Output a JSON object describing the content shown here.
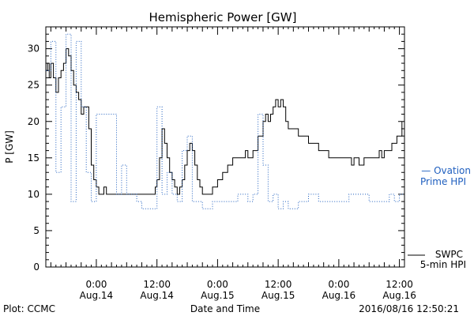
{
  "chart_data": {
    "type": "line",
    "title": "Hemispheric Power [GW]",
    "ylabel": "P [GW]",
    "xlabel": "Date and Time",
    "ylim": [
      0,
      33
    ],
    "yticks": [
      0,
      5,
      10,
      15,
      20,
      25,
      30
    ],
    "xlim": [
      "2016-08-13 14:00",
      "2016-08-16 13:00"
    ],
    "xticks": [
      {
        "time": "2016-08-14 00:00",
        "label1": "0:00",
        "label2": "Aug.14"
      },
      {
        "time": "2016-08-14 12:00",
        "label1": "12:00",
        "label2": "Aug.14"
      },
      {
        "time": "2016-08-15 00:00",
        "label1": "0:00",
        "label2": "Aug.15"
      },
      {
        "time": "2016-08-15 12:00",
        "label1": "12:00",
        "label2": "Aug.15"
      },
      {
        "time": "2016-08-16 00:00",
        "label1": "0:00",
        "label2": "Aug.16"
      },
      {
        "time": "2016-08-16 12:00",
        "label1": "12:00",
        "label2": "Aug.16"
      }
    ],
    "series": [
      {
        "name": "SWPC 5-min HPI",
        "legend_line1": "SWPC",
        "legend_line2": "5-min HPI",
        "color": "#000000",
        "style": "solid",
        "points": [
          [
            "2016-08-13 14:00",
            27
          ],
          [
            "2016-08-13 14:20",
            28
          ],
          [
            "2016-08-13 14:40",
            26
          ],
          [
            "2016-08-13 15:00",
            28
          ],
          [
            "2016-08-13 15:30",
            26
          ],
          [
            "2016-08-13 16:00",
            24
          ],
          [
            "2016-08-13 16:30",
            26
          ],
          [
            "2016-08-13 17:00",
            27
          ],
          [
            "2016-08-13 17:30",
            28
          ],
          [
            "2016-08-13 18:00",
            30
          ],
          [
            "2016-08-13 18:30",
            29
          ],
          [
            "2016-08-13 19:00",
            27
          ],
          [
            "2016-08-13 19:30",
            25
          ],
          [
            "2016-08-13 20:00",
            24
          ],
          [
            "2016-08-13 20:30",
            23
          ],
          [
            "2016-08-13 21:00",
            21
          ],
          [
            "2016-08-13 21:30",
            22
          ],
          [
            "2016-08-13 22:00",
            22
          ],
          [
            "2016-08-13 22:30",
            19
          ],
          [
            "2016-08-13 23:00",
            14
          ],
          [
            "2016-08-13 23:30",
            12
          ],
          [
            "2016-08-14 00:00",
            11
          ],
          [
            "2016-08-14 00:30",
            10
          ],
          [
            "2016-08-14 01:00",
            10
          ],
          [
            "2016-08-14 01:30",
            11
          ],
          [
            "2016-08-14 02:00",
            10
          ],
          [
            "2016-08-14 03:00",
            10
          ],
          [
            "2016-08-14 04:00",
            10
          ],
          [
            "2016-08-14 05:00",
            10
          ],
          [
            "2016-08-14 06:00",
            10
          ],
          [
            "2016-08-14 07:00",
            10
          ],
          [
            "2016-08-14 08:00",
            10
          ],
          [
            "2016-08-14 09:00",
            10
          ],
          [
            "2016-08-14 10:00",
            10
          ],
          [
            "2016-08-14 11:00",
            10
          ],
          [
            "2016-08-14 11:40",
            11
          ],
          [
            "2016-08-14 12:00",
            12
          ],
          [
            "2016-08-14 12:30",
            15
          ],
          [
            "2016-08-14 13:00",
            19
          ],
          [
            "2016-08-14 13:30",
            17
          ],
          [
            "2016-08-14 14:00",
            15
          ],
          [
            "2016-08-14 14:30",
            13
          ],
          [
            "2016-08-14 15:00",
            12
          ],
          [
            "2016-08-14 15:30",
            11
          ],
          [
            "2016-08-14 16:00",
            10
          ],
          [
            "2016-08-14 16:30",
            11
          ],
          [
            "2016-08-14 17:00",
            12
          ],
          [
            "2016-08-14 17:30",
            14
          ],
          [
            "2016-08-14 18:00",
            16
          ],
          [
            "2016-08-14 18:30",
            17
          ],
          [
            "2016-08-14 19:00",
            16
          ],
          [
            "2016-08-14 19:30",
            14
          ],
          [
            "2016-08-14 20:00",
            12
          ],
          [
            "2016-08-14 20:30",
            11
          ],
          [
            "2016-08-14 21:00",
            10
          ],
          [
            "2016-08-14 22:00",
            10
          ],
          [
            "2016-08-14 23:00",
            11
          ],
          [
            "2016-08-15 00:00",
            12
          ],
          [
            "2016-08-15 01:00",
            13
          ],
          [
            "2016-08-15 02:00",
            14
          ],
          [
            "2016-08-15 03:00",
            15
          ],
          [
            "2016-08-15 04:00",
            15
          ],
          [
            "2016-08-15 05:00",
            15
          ],
          [
            "2016-08-15 05:30",
            16
          ],
          [
            "2016-08-15 06:00",
            15
          ],
          [
            "2016-08-15 07:00",
            16
          ],
          [
            "2016-08-15 08:00",
            18
          ],
          [
            "2016-08-15 09:00",
            20
          ],
          [
            "2016-08-15 09:30",
            21
          ],
          [
            "2016-08-15 10:00",
            20
          ],
          [
            "2016-08-15 10:30",
            21
          ],
          [
            "2016-08-15 11:00",
            22
          ],
          [
            "2016-08-15 11:30",
            23
          ],
          [
            "2016-08-15 12:00",
            22
          ],
          [
            "2016-08-15 12:30",
            23
          ],
          [
            "2016-08-15 13:00",
            22
          ],
          [
            "2016-08-15 13:30",
            20
          ],
          [
            "2016-08-15 14:00",
            19
          ],
          [
            "2016-08-15 15:00",
            19
          ],
          [
            "2016-08-15 16:00",
            18
          ],
          [
            "2016-08-15 17:00",
            18
          ],
          [
            "2016-08-15 18:00",
            17
          ],
          [
            "2016-08-15 19:00",
            17
          ],
          [
            "2016-08-15 20:00",
            16
          ],
          [
            "2016-08-15 21:00",
            16
          ],
          [
            "2016-08-15 22:00",
            15
          ],
          [
            "2016-08-15 23:00",
            15
          ],
          [
            "2016-08-16 00:00",
            15
          ],
          [
            "2016-08-16 01:00",
            15
          ],
          [
            "2016-08-16 02:00",
            15
          ],
          [
            "2016-08-16 02:30",
            14
          ],
          [
            "2016-08-16 03:00",
            15
          ],
          [
            "2016-08-16 04:00",
            14
          ],
          [
            "2016-08-16 05:00",
            15
          ],
          [
            "2016-08-16 06:00",
            15
          ],
          [
            "2016-08-16 07:00",
            15
          ],
          [
            "2016-08-16 08:00",
            16
          ],
          [
            "2016-08-16 08:30",
            15
          ],
          [
            "2016-08-16 09:00",
            16
          ],
          [
            "2016-08-16 10:00",
            16
          ],
          [
            "2016-08-16 10:30",
            17
          ],
          [
            "2016-08-16 11:00",
            17
          ],
          [
            "2016-08-16 11:30",
            18
          ],
          [
            "2016-08-16 12:00",
            18
          ],
          [
            "2016-08-16 12:30",
            20
          ]
        ]
      },
      {
        "name": "Ovation Prime HPI",
        "legend_line1": "— Ovation",
        "legend_line2": "Prime HPI",
        "color": "#1f5fbf",
        "style": "dotted",
        "points": [
          [
            "2016-08-13 14:00",
            27
          ],
          [
            "2016-08-13 15:00",
            31
          ],
          [
            "2016-08-13 16:00",
            13
          ],
          [
            "2016-08-13 17:00",
            22
          ],
          [
            "2016-08-13 18:00",
            32
          ],
          [
            "2016-08-13 19:00",
            9
          ],
          [
            "2016-08-13 20:00",
            31
          ],
          [
            "2016-08-13 21:00",
            22
          ],
          [
            "2016-08-13 22:00",
            13
          ],
          [
            "2016-08-13 23:00",
            9
          ],
          [
            "2016-08-14 00:00",
            21
          ],
          [
            "2016-08-14 01:00",
            21
          ],
          [
            "2016-08-14 02:00",
            21
          ],
          [
            "2016-08-14 03:00",
            21
          ],
          [
            "2016-08-14 04:00",
            10
          ],
          [
            "2016-08-14 05:00",
            14
          ],
          [
            "2016-08-14 06:00",
            10
          ],
          [
            "2016-08-14 07:00",
            10
          ],
          [
            "2016-08-14 08:00",
            9
          ],
          [
            "2016-08-14 09:00",
            8
          ],
          [
            "2016-08-14 10:00",
            8
          ],
          [
            "2016-08-14 11:00",
            8
          ],
          [
            "2016-08-14 12:00",
            22
          ],
          [
            "2016-08-14 13:00",
            10
          ],
          [
            "2016-08-14 14:00",
            13
          ],
          [
            "2016-08-14 15:00",
            10
          ],
          [
            "2016-08-14 16:00",
            9
          ],
          [
            "2016-08-14 17:00",
            16
          ],
          [
            "2016-08-14 18:00",
            18
          ],
          [
            "2016-08-14 19:00",
            9
          ],
          [
            "2016-08-14 20:00",
            9
          ],
          [
            "2016-08-14 21:00",
            8
          ],
          [
            "2016-08-14 22:00",
            8
          ],
          [
            "2016-08-14 23:00",
            9
          ],
          [
            "2016-08-15 00:00",
            9
          ],
          [
            "2016-08-15 01:00",
            9
          ],
          [
            "2016-08-15 02:00",
            9
          ],
          [
            "2016-08-15 03:00",
            9
          ],
          [
            "2016-08-15 04:00",
            10
          ],
          [
            "2016-08-15 05:00",
            10
          ],
          [
            "2016-08-15 06:00",
            9
          ],
          [
            "2016-08-15 07:00",
            10
          ],
          [
            "2016-08-15 08:00",
            21
          ],
          [
            "2016-08-15 09:00",
            14
          ],
          [
            "2016-08-15 10:00",
            9
          ],
          [
            "2016-08-15 11:00",
            10
          ],
          [
            "2016-08-15 12:00",
            8
          ],
          [
            "2016-08-15 13:00",
            9
          ],
          [
            "2016-08-15 14:00",
            8
          ],
          [
            "2016-08-15 15:00",
            8
          ],
          [
            "2016-08-15 16:00",
            9
          ],
          [
            "2016-08-15 17:00",
            9
          ],
          [
            "2016-08-15 18:00",
            10
          ],
          [
            "2016-08-15 19:00",
            10
          ],
          [
            "2016-08-15 20:00",
            9
          ],
          [
            "2016-08-15 21:00",
            9
          ],
          [
            "2016-08-15 22:00",
            9
          ],
          [
            "2016-08-15 23:00",
            9
          ],
          [
            "2016-08-16 00:00",
            9
          ],
          [
            "2016-08-16 01:00",
            9
          ],
          [
            "2016-08-16 02:00",
            10
          ],
          [
            "2016-08-16 03:00",
            10
          ],
          [
            "2016-08-16 04:00",
            10
          ],
          [
            "2016-08-16 05:00",
            10
          ],
          [
            "2016-08-16 06:00",
            9
          ],
          [
            "2016-08-16 07:00",
            9
          ],
          [
            "2016-08-16 08:00",
            9
          ],
          [
            "2016-08-16 09:00",
            9
          ],
          [
            "2016-08-16 10:00",
            10
          ],
          [
            "2016-08-16 11:00",
            9
          ],
          [
            "2016-08-16 12:00",
            10
          ],
          [
            "2016-08-16 12:50",
            10
          ]
        ]
      }
    ]
  },
  "footer": {
    "plot_credit": "Plot: CCMC",
    "timestamp": "2016/08/16 12:50:21"
  }
}
